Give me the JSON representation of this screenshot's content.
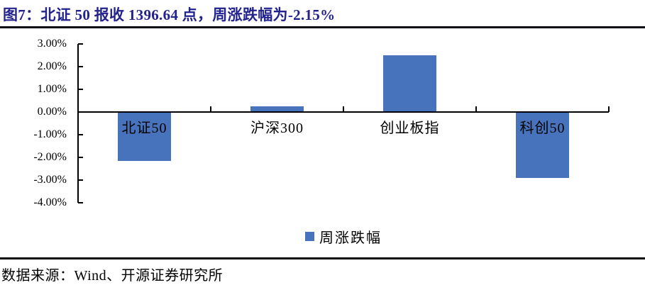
{
  "figure": {
    "title": "图7：北证 50 报收 1396.64 点，周涨跌幅为-2.15%",
    "source": "数据来源：Wind、开源证券研究所"
  },
  "chart_data": {
    "type": "bar",
    "categories": [
      "北证50",
      "沪深300",
      "创业板指",
      "科创50"
    ],
    "series": [
      {
        "name": "周涨跌幅",
        "values": [
          -2.15,
          0.25,
          2.5,
          -2.9
        ]
      }
    ],
    "ylim": [
      -4,
      3
    ],
    "ytick_values": [
      3,
      2,
      1,
      0,
      -1,
      -2,
      -3,
      -4
    ],
    "ytick_labels": [
      "3.00%",
      "2.00%",
      "1.00%",
      "0.00%",
      "-1.00%",
      "-2.00%",
      "-3.00%",
      "-4.00%"
    ],
    "xlabel": "",
    "ylabel": "",
    "grid": false,
    "legend": {
      "label": "周涨跌幅",
      "position": "bottom"
    },
    "bar_color": "#4673bb",
    "axis_color": "#000000",
    "title_color": "#22228e"
  }
}
